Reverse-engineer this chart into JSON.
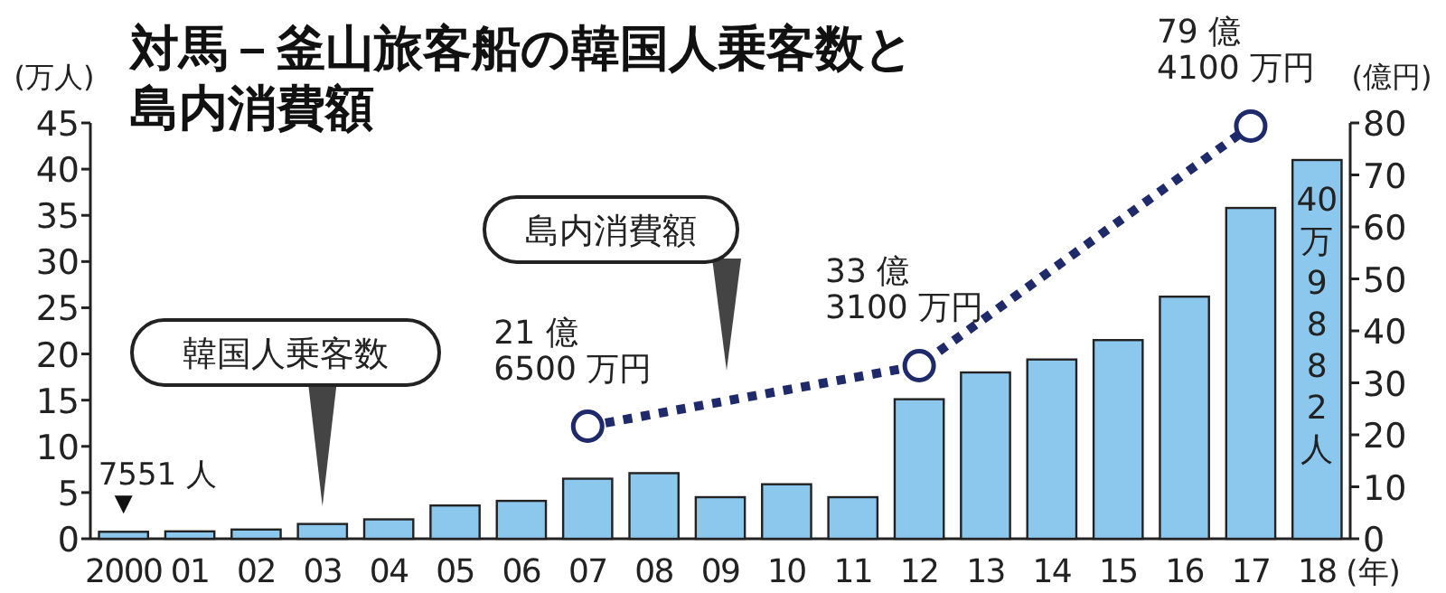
{
  "chart_data": {
    "type": "bar",
    "title": "対馬－釜山旅客船の韓国人乗客数と島内消費額",
    "ylabel": "(万人)",
    "y2label": "(億円)",
    "xlabel": "(年)",
    "categories": [
      "2000",
      "01",
      "02",
      "03",
      "04",
      "05",
      "06",
      "07",
      "08",
      "09",
      "10",
      "11",
      "12",
      "13",
      "14",
      "15",
      "16",
      "17",
      "18"
    ],
    "ylim": [
      0,
      45
    ],
    "yticks": [
      0,
      5,
      10,
      15,
      20,
      25,
      30,
      35,
      40,
      45
    ],
    "y2lim": [
      0,
      80
    ],
    "y2ticks": [
      0,
      10,
      20,
      30,
      40,
      50,
      60,
      70,
      80
    ],
    "grid": false,
    "annotations": [
      "韓国人乗客数",
      "島内消費額",
      {
        "text": "7551 人",
        "x": "2000",
        "y": 0.7551
      },
      {
        "text": "40万9882人",
        "x": "18",
        "y": 40.9882
      },
      "21 億\n6500 万円",
      "33 億\n3100 万円",
      "79 億\n4100 万円"
    ],
    "series": [
      {
        "color": "#8cc8ee",
        "values": [
          0.7551,
          0.8,
          1.0,
          1.6,
          2.1,
          3.6,
          4.1,
          6.5,
          7.1,
          4.5,
          5.9,
          4.5,
          15.1,
          18.0,
          19.4,
          21.5,
          26.2,
          35.8,
          40.9882
        ]
      },
      {
        "type": "line",
        "axis": "y2",
        "color": "#1f2a6b",
        "marker": "circle",
        "line_style": "dotted",
        "values": [
          null,
          null,
          null,
          null,
          null,
          null,
          null,
          21.65,
          null,
          null,
          null,
          null,
          33.31,
          null,
          null,
          null,
          null,
          79.41,
          null
        ]
      }
    ]
  }
}
